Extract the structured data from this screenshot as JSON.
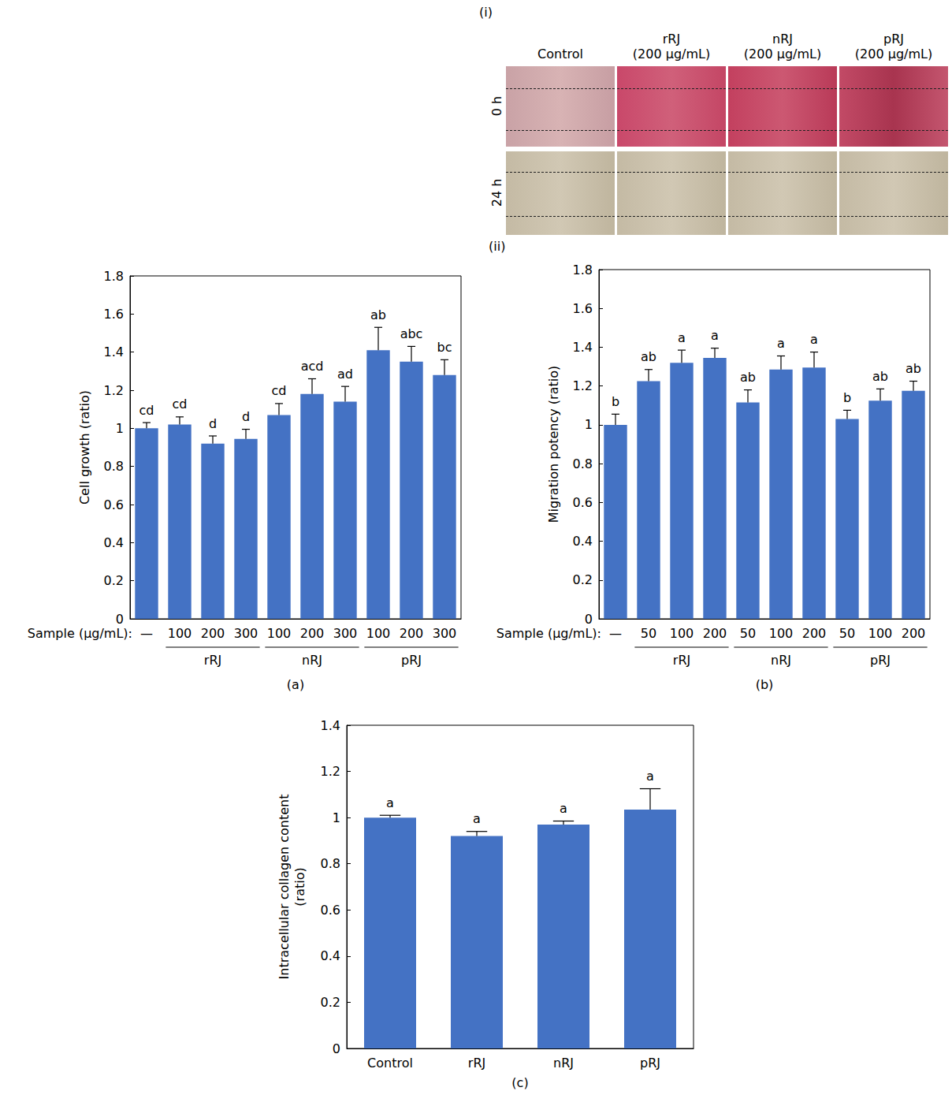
{
  "image_panel": {
    "label": "(i)",
    "columns": [
      "Control",
      "rRJ (200 μg/mL)",
      "nRJ (200 μg/mL)",
      "pRJ (200 μg/mL)"
    ],
    "rows": [
      "0 h",
      "24 h"
    ]
  },
  "chart_data": [
    {
      "type": "bar",
      "panel": "(a)",
      "ylabel": "Cell growth (ratio)",
      "xlabel": "Sample (μg/mL):",
      "categories": [
        "—",
        "100",
        "200",
        "300",
        "100",
        "200",
        "300",
        "100",
        "200",
        "300"
      ],
      "groups": [
        null,
        "rRJ",
        "rRJ",
        "rRJ",
        "nRJ",
        "nRJ",
        "nRJ",
        "pRJ",
        "pRJ",
        "pRJ"
      ],
      "values": [
        1.0,
        1.02,
        0.92,
        0.945,
        1.07,
        1.18,
        1.14,
        1.41,
        1.35,
        1.28
      ],
      "errors": [
        0.03,
        0.04,
        0.04,
        0.05,
        0.06,
        0.08,
        0.08,
        0.12,
        0.08,
        0.08
      ],
      "letters": [
        "cd",
        "cd",
        "d",
        "d",
        "cd",
        "acd",
        "ad",
        "ab",
        "abc",
        "bc"
      ],
      "color": "#4472c4",
      "ylim": [
        0,
        1.8
      ],
      "yticks": [
        0,
        0.2,
        0.4,
        0.6,
        0.8,
        1,
        1.2,
        1.4,
        1.6,
        1.8
      ],
      "grid": false
    },
    {
      "type": "bar",
      "panel": "(b)",
      "subpanel": "(ii)",
      "ylabel": "Migration potency (ratio)",
      "xlabel": "Sample (μg/mL):",
      "categories": [
        "—",
        "50",
        "100",
        "200",
        "50",
        "100",
        "200",
        "50",
        "100",
        "200"
      ],
      "groups": [
        null,
        "rRJ",
        "rRJ",
        "rRJ",
        "nRJ",
        "nRJ",
        "nRJ",
        "pRJ",
        "pRJ",
        "pRJ"
      ],
      "values": [
        1.0,
        1.225,
        1.32,
        1.345,
        1.115,
        1.285,
        1.295,
        1.03,
        1.125,
        1.175
      ],
      "errors": [
        0.055,
        0.06,
        0.065,
        0.05,
        0.065,
        0.07,
        0.08,
        0.045,
        0.06,
        0.05
      ],
      "letters": [
        "b",
        "ab",
        "a",
        "a",
        "ab",
        "a",
        "a",
        "b",
        "ab",
        "ab"
      ],
      "color": "#4472c4",
      "ylim": [
        0,
        1.8
      ],
      "yticks": [
        0,
        0.2,
        0.4,
        0.6,
        0.8,
        1,
        1.2,
        1.4,
        1.6,
        1.8
      ],
      "grid": false
    },
    {
      "type": "bar",
      "panel": "(c)",
      "ylabel": "Intracellular collagen content (ratio)",
      "categories": [
        "Control",
        "rRJ",
        "nRJ",
        "pRJ"
      ],
      "values": [
        1.0,
        0.92,
        0.97,
        1.035
      ],
      "errors": [
        0.01,
        0.02,
        0.015,
        0.09
      ],
      "letters": [
        "a",
        "a",
        "a",
        "a"
      ],
      "color": "#4472c4",
      "ylim": [
        0,
        1.4
      ],
      "yticks": [
        0,
        0.2,
        0.4,
        0.6,
        0.8,
        1,
        1.2,
        1.4
      ],
      "grid": false
    }
  ]
}
